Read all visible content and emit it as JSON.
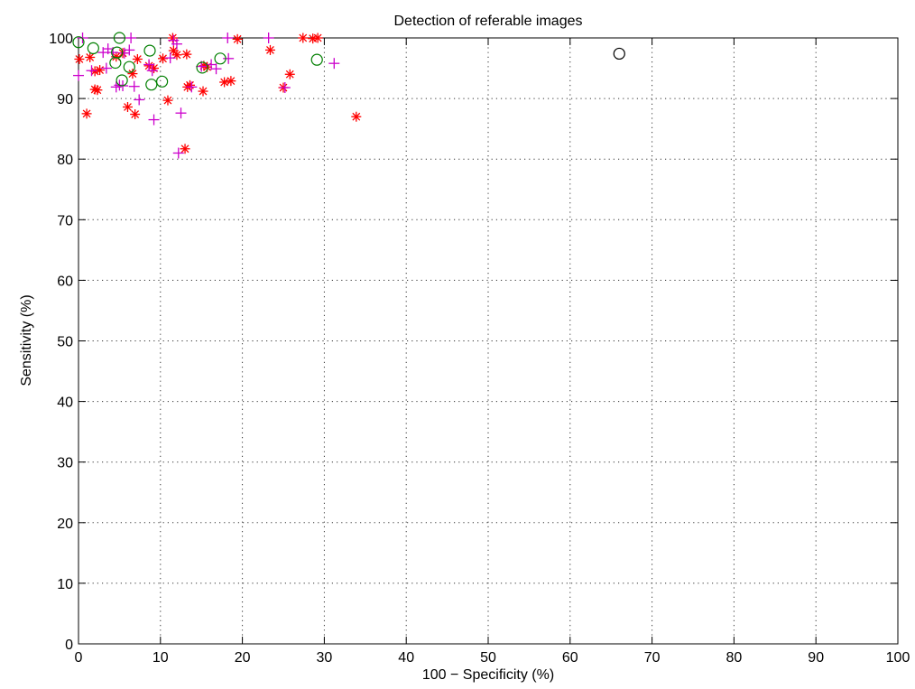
{
  "chart_data": {
    "type": "scatter",
    "title": "Detection of referable images",
    "xlabel": "100 − Specificity (%)",
    "ylabel": "Sensitivity (%)",
    "xlim": [
      0,
      100
    ],
    "ylim": [
      0,
      100
    ],
    "xticks": [
      0,
      10,
      20,
      30,
      40,
      50,
      60,
      70,
      80,
      90,
      100
    ],
    "yticks": [
      0,
      10,
      20,
      30,
      40,
      50,
      60,
      70,
      80,
      90,
      100
    ],
    "grid": true,
    "legend": "none",
    "series": [
      {
        "marker": "asterisk",
        "color": "#ff0000",
        "points": [
          [
            0.1,
            96.5
          ],
          [
            1.0,
            87.5
          ],
          [
            1.4,
            96.8
          ],
          [
            2.0,
            91.5
          ],
          [
            2.0,
            94.5
          ],
          [
            2.3,
            91.4
          ],
          [
            2.6,
            94.7
          ],
          [
            4.6,
            96.9
          ],
          [
            5.4,
            97.5
          ],
          [
            6.0,
            88.6
          ],
          [
            6.6,
            94.1
          ],
          [
            6.9,
            87.4
          ],
          [
            7.2,
            96.5
          ],
          [
            8.6,
            95.4
          ],
          [
            9.2,
            95.0
          ],
          [
            10.3,
            96.6
          ],
          [
            10.9,
            89.7
          ],
          [
            11.5,
            100.0
          ],
          [
            11.6,
            97.9
          ],
          [
            12.0,
            97.2
          ],
          [
            13.0,
            81.7
          ],
          [
            13.2,
            97.3
          ],
          [
            13.3,
            91.9
          ],
          [
            13.6,
            92.2
          ],
          [
            15.2,
            91.2
          ],
          [
            15.3,
            95.4
          ],
          [
            15.7,
            95.2
          ],
          [
            17.8,
            92.7
          ],
          [
            18.6,
            92.9
          ],
          [
            19.4,
            99.8
          ],
          [
            23.4,
            98.0
          ],
          [
            25.0,
            91.8
          ],
          [
            25.8,
            94.0
          ],
          [
            27.4,
            100.0
          ],
          [
            28.6,
            99.9
          ],
          [
            29.2,
            100.0
          ],
          [
            33.9,
            87.0
          ]
        ]
      },
      {
        "marker": "plus",
        "color": "#cc00cc",
        "points": [
          [
            0.0,
            93.8
          ],
          [
            0.5,
            100.0
          ],
          [
            1.6,
            94.6
          ],
          [
            3.0,
            97.6
          ],
          [
            3.4,
            95.0
          ],
          [
            3.6,
            98.2
          ],
          [
            4.2,
            97.6
          ],
          [
            4.6,
            91.9
          ],
          [
            5.0,
            92.2
          ],
          [
            5.4,
            92.1
          ],
          [
            5.6,
            97.5
          ],
          [
            6.2,
            98.0
          ],
          [
            6.4,
            100.0
          ],
          [
            6.8,
            92.0
          ],
          [
            7.4,
            89.8
          ],
          [
            8.6,
            95.6
          ],
          [
            9.0,
            94.6
          ],
          [
            9.2,
            86.5
          ],
          [
            11.2,
            96.7
          ],
          [
            11.6,
            99.6
          ],
          [
            12.0,
            99.0
          ],
          [
            12.2,
            81.0
          ],
          [
            12.5,
            87.6
          ],
          [
            13.8,
            91.9
          ],
          [
            15.0,
            95.3
          ],
          [
            16.2,
            95.6
          ],
          [
            16.8,
            94.9
          ],
          [
            18.2,
            100.0
          ],
          [
            18.3,
            96.6
          ],
          [
            23.2,
            100.0
          ],
          [
            25.2,
            91.8
          ],
          [
            31.2,
            95.8
          ]
        ]
      },
      {
        "marker": "circle",
        "color": "#007f00",
        "points": [
          [
            0.0,
            99.3
          ],
          [
            1.8,
            98.3
          ],
          [
            4.5,
            95.9
          ],
          [
            4.7,
            97.6
          ],
          [
            5.0,
            100.0
          ],
          [
            5.3,
            93.0
          ],
          [
            6.2,
            95.2
          ],
          [
            8.7,
            97.9
          ],
          [
            8.9,
            92.3
          ],
          [
            10.2,
            92.8
          ],
          [
            15.1,
            95.1
          ],
          [
            17.3,
            96.6
          ],
          [
            29.1,
            96.4
          ]
        ]
      },
      {
        "marker": "circle",
        "color": "#000000",
        "points": [
          [
            66.0,
            97.4
          ]
        ]
      }
    ]
  }
}
